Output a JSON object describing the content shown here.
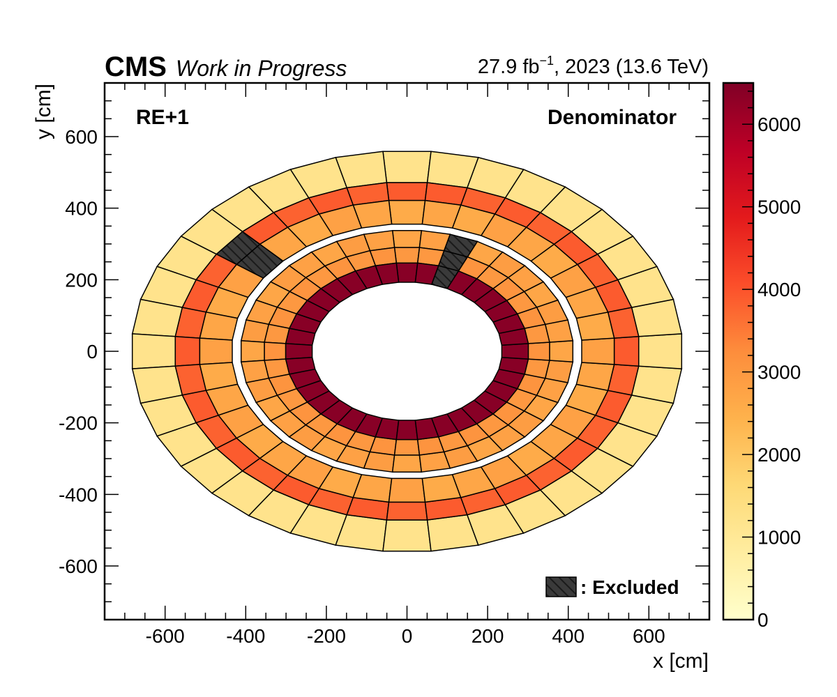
{
  "header": {
    "experiment": "CMS",
    "status": "Work in Progress",
    "lumi_prefix": "27.9 fb",
    "lumi_exponent": "−1",
    "lumi_suffix": ", 2023 (13.6 TeV)"
  },
  "chart_data": {
    "type": "heatmap",
    "xlabel": "x [cm]",
    "ylabel": "y [cm]",
    "xlim": [
      -750,
      750
    ],
    "ylim": [
      -750,
      750
    ],
    "x_ticks": [
      -600,
      -400,
      -200,
      0,
      200,
      400,
      600
    ],
    "y_ticks": [
      -600,
      -400,
      -200,
      0,
      200,
      400,
      600
    ],
    "tick_labels_x": [
      "-600",
      "-400",
      "-200",
      "0",
      "200",
      "400",
      "600"
    ],
    "tick_labels_y": [
      "-600",
      "-400",
      "-200",
      "0",
      "200",
      "400",
      "600"
    ],
    "annotation_left": "RE+1",
    "annotation_right": "Denominator",
    "legend_label": ": Excluded",
    "legend_color": "#3a3a3a",
    "colorbar": {
      "range": [
        0,
        6500
      ],
      "ticks": [
        0,
        1000,
        2000,
        3000,
        4000,
        5000,
        6000
      ],
      "tick_labels": [
        "0",
        "1000",
        "2000",
        "3000",
        "4000",
        "5000",
        "6000"
      ],
      "colors": [
        "#ffffcc",
        "#ffeda0",
        "#fed976",
        "#feb24c",
        "#fd8d3c",
        "#fc4e2a",
        "#e31a1c",
        "#bd0026",
        "#800026"
      ]
    },
    "rings": [
      {
        "name": "ring-3-outer",
        "r_inner": 577,
        "r_outer": 684,
        "segments": 36,
        "values": [
          1200,
          1200,
          1200,
          1200,
          1200,
          1200,
          1200,
          1200,
          1200,
          1200,
          1200,
          1200,
          1200,
          1200,
          1200,
          1200,
          1200,
          1200,
          1200,
          1200,
          1200,
          1200,
          1200,
          1200,
          1200,
          1200,
          1200,
          1200,
          1200,
          1200,
          1200,
          1200,
          1200,
          1200,
          1200,
          1200
        ]
      },
      {
        "name": "ring-3-middle",
        "r_inner": 516,
        "r_outer": 577,
        "segments": 36,
        "values": [
          3900,
          3800,
          3900,
          3800,
          3900,
          null,
          3800,
          3900,
          3800,
          3900,
          3800,
          3900,
          3800,
          3900,
          3800,
          3900,
          3800,
          3900,
          3800,
          3900,
          3800,
          3900,
          3800,
          3900,
          3800,
          3900,
          3800,
          3900,
          3800,
          3900,
          3800,
          3900,
          3800,
          3900,
          3800,
          3900
        ]
      },
      {
        "name": "ring-3-inner",
        "r_inner": 435,
        "r_outer": 516,
        "segments": 36,
        "values": [
          2600,
          2700,
          2800,
          2600,
          2700,
          null,
          2800,
          2600,
          2700,
          2800,
          2600,
          2700,
          2800,
          2600,
          2700,
          2800,
          2600,
          2700,
          2800,
          2600,
          2700,
          2800,
          2600,
          2700,
          2800,
          2600,
          2700,
          2800,
          2600,
          2700,
          2800,
          2600,
          2700,
          2800,
          2600,
          2700
        ]
      },
      {
        "name": "ring-2-outer",
        "r_inner": 355,
        "r_outer": 413,
        "segments": 36,
        "values": [
          2700,
          2800,
          2900,
          2700,
          2800,
          2900,
          2700,
          2800,
          2900,
          2700,
          2800,
          2900,
          2700,
          2800,
          2900,
          2700,
          2800,
          2900,
          2700,
          2800,
          2900,
          2700,
          2800,
          2900,
          2700,
          2800,
          2900,
          2700,
          2800,
          2900,
          2700,
          2800,
          2900,
          2700,
          null,
          2800
        ]
      },
      {
        "name": "ring-2-middle",
        "r_inner": 302,
        "r_outer": 355,
        "segments": 36,
        "values": [
          3000,
          3100,
          3000,
          3100,
          3000,
          3100,
          3000,
          3100,
          3000,
          3100,
          3000,
          3100,
          3000,
          3100,
          3000,
          3100,
          3000,
          3100,
          3000,
          3100,
          3000,
          3100,
          3000,
          3100,
          3000,
          3100,
          3000,
          3100,
          3000,
          3100,
          3000,
          3100,
          3000,
          3100,
          null,
          3000
        ]
      },
      {
        "name": "ring-2-inner",
        "r_inner": 236,
        "r_outer": 302,
        "segments": 36,
        "values": [
          6400,
          6400,
          6400,
          6400,
          6400,
          6400,
          6400,
          6400,
          6400,
          6400,
          6400,
          6400,
          6400,
          6400,
          6400,
          6400,
          6400,
          6400,
          6400,
          6400,
          6400,
          6400,
          6400,
          6400,
          6400,
          6400,
          6400,
          6400,
          6400,
          6400,
          6400,
          6400,
          6400,
          6400,
          null,
          6400
        ]
      }
    ],
    "aspect_y_over_x": 0.82
  }
}
